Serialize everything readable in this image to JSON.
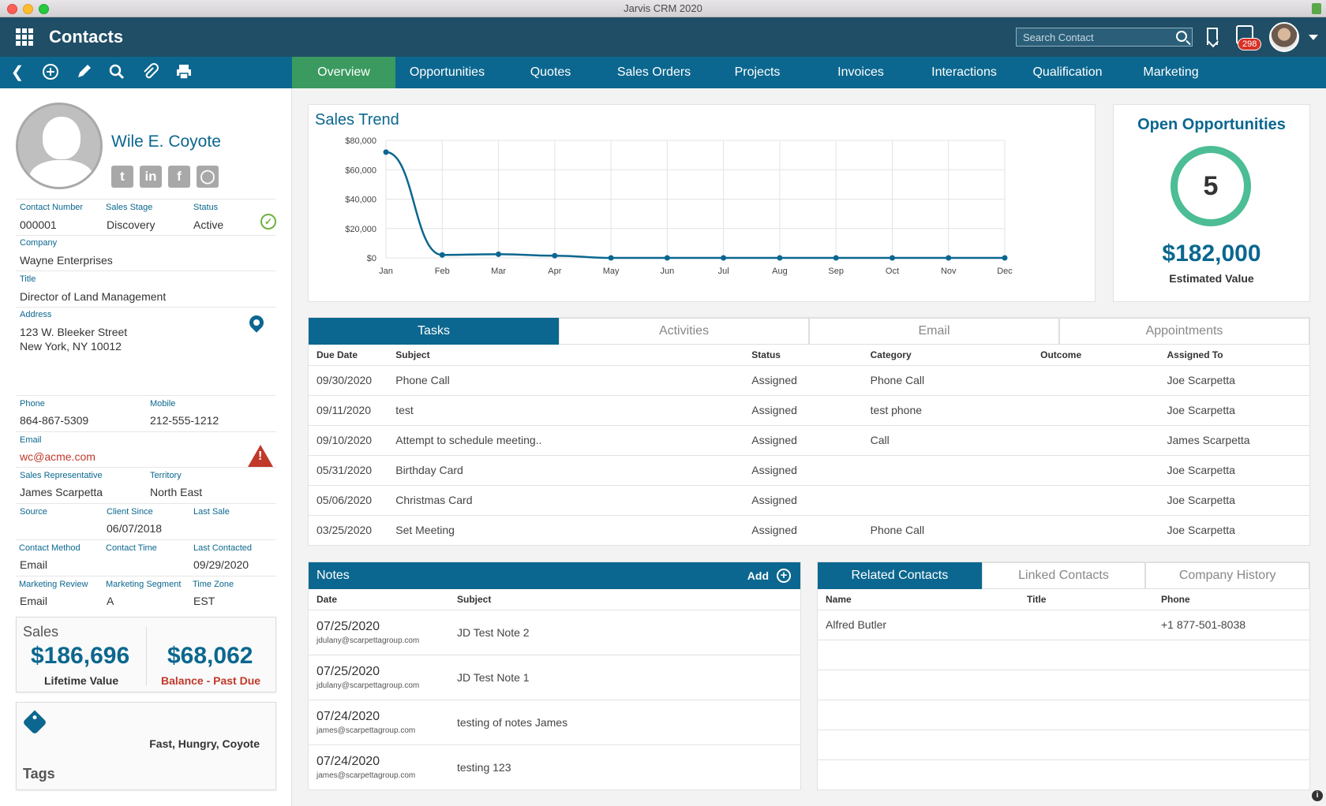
{
  "window": {
    "title": "Jarvis CRM 2020"
  },
  "header": {
    "app_title": "Contacts",
    "search_placeholder": "Search Contact",
    "notification_count": "298"
  },
  "toolbar": {
    "icons": [
      "back-icon",
      "add-icon",
      "edit-icon",
      "search-icon",
      "attach-icon",
      "print-icon"
    ]
  },
  "tabs": [
    {
      "label": "Overview",
      "active": true
    },
    {
      "label": "Opportunities"
    },
    {
      "label": "Quotes"
    },
    {
      "label": "Sales Orders"
    },
    {
      "label": "Projects"
    },
    {
      "label": "Invoices"
    },
    {
      "label": "Interactions"
    },
    {
      "label": "Qualification"
    },
    {
      "label": "Marketing"
    }
  ],
  "contact": {
    "name": "Wile E. Coyote",
    "social": [
      "twitter-icon",
      "linkedin-icon",
      "facebook-icon",
      "instagram-icon"
    ],
    "contact_number_label": "Contact Number",
    "contact_number": "000001",
    "sales_stage_label": "Sales Stage",
    "sales_stage": "Discovery",
    "status_label": "Status",
    "status": "Active",
    "company_label": "Company",
    "company": "Wayne Enterprises",
    "title_label": "Title",
    "title": "Director of Land Management",
    "address_label": "Address",
    "address_line1": "123 W. Bleeker Street",
    "address_line2": "New York, NY 10012",
    "phone_label": "Phone",
    "phone": "864-867-5309",
    "mobile_label": "Mobile",
    "mobile": "212-555-1212",
    "email_label": "Email",
    "email": "wc@acme.com",
    "sales_rep_label": "Sales Representative",
    "sales_rep": "James Scarpetta",
    "territory_label": "Territory",
    "territory": "North East",
    "source_label": "Source",
    "source": "",
    "client_since_label": "Client Since",
    "client_since": "06/07/2018",
    "last_sale_label": "Last Sale",
    "last_sale": "",
    "contact_method_label": "Contact Method",
    "contact_method": "Email",
    "contact_time_label": "Contact Time",
    "contact_time": "",
    "last_contacted_label": "Last Contacted",
    "last_contacted": "09/29/2020",
    "marketing_review_label": "Marketing Review",
    "marketing_review": "Email",
    "marketing_segment_label": "Marketing Segment",
    "marketing_segment": "A",
    "time_zone_label": "Time Zone",
    "time_zone": "EST"
  },
  "sales": {
    "title": "Sales",
    "lifetime_value": "$186,696",
    "lifetime_label": "Lifetime Value",
    "balance": "$68,062",
    "balance_label": "Balance - Past Due"
  },
  "tags": {
    "title": "Tags",
    "values": "Fast, Hungry, Coyote"
  },
  "sales_trend": {
    "title": "Sales Trend"
  },
  "chart_data": {
    "type": "line",
    "title": "Sales Trend",
    "categories": [
      "Jan",
      "Feb",
      "Mar",
      "Apr",
      "May",
      "Jun",
      "Jul",
      "Aug",
      "Sep",
      "Oct",
      "Nov",
      "Dec"
    ],
    "values": [
      72000,
      2000,
      2500,
      1500,
      0,
      0,
      0,
      0,
      0,
      0,
      0,
      0
    ],
    "yticks": [
      "$0",
      "$20,000",
      "$40,000",
      "$60,000",
      "$80,000"
    ],
    "ylim": [
      0,
      80000
    ],
    "grid": true,
    "color": "#0b678f"
  },
  "open_opportunities": {
    "title": "Open Opportunities",
    "count": "5",
    "value": "$182,000",
    "value_label": "Estimated Value",
    "ring_color": "#4cbd94"
  },
  "activity_tabs": [
    "Tasks",
    "Activities",
    "Email",
    "Appointments"
  ],
  "tasks": {
    "columns": [
      "Due Date",
      "Subject",
      "Status",
      "Category",
      "Outcome",
      "Assigned To"
    ],
    "rows": [
      [
        "09/30/2020",
        "Phone Call",
        "Assigned",
        "Phone Call",
        "",
        "Joe Scarpetta"
      ],
      [
        "09/11/2020",
        "test",
        "Assigned",
        "test phone",
        "",
        "Joe Scarpetta"
      ],
      [
        "09/10/2020",
        "Attempt to schedule meeting..",
        "Assigned",
        "Call",
        "",
        "James Scarpetta"
      ],
      [
        "05/31/2020",
        "Birthday Card",
        "Assigned",
        "",
        "",
        "Joe Scarpetta"
      ],
      [
        "05/06/2020",
        "Christmas Card",
        "Assigned",
        "",
        "",
        "Joe Scarpetta"
      ],
      [
        "03/25/2020",
        "Set Meeting",
        "Assigned",
        "Phone Call",
        "",
        "Joe Scarpetta"
      ]
    ]
  },
  "notes": {
    "title": "Notes",
    "add_label": "Add",
    "columns": [
      "Date",
      "Subject"
    ],
    "rows": [
      {
        "date": "07/25/2020",
        "by": "jdulany@scarpettagroup.com",
        "subject": "JD Test Note 2"
      },
      {
        "date": "07/25/2020",
        "by": "jdulany@scarpettagroup.com",
        "subject": "JD Test Note 1"
      },
      {
        "date": "07/24/2020",
        "by": "james@scarpettagroup.com",
        "subject": "testing of notes James"
      },
      {
        "date": "07/24/2020",
        "by": "james@scarpettagroup.com",
        "subject": "testing 123"
      }
    ]
  },
  "related_tabs": [
    "Related Contacts",
    "Linked Contacts",
    "Company History"
  ],
  "related": {
    "columns": [
      "Name",
      "Title",
      "Phone"
    ],
    "rows": [
      [
        "Alfred Butler",
        "",
        "+1 877-501-8038"
      ]
    ]
  }
}
